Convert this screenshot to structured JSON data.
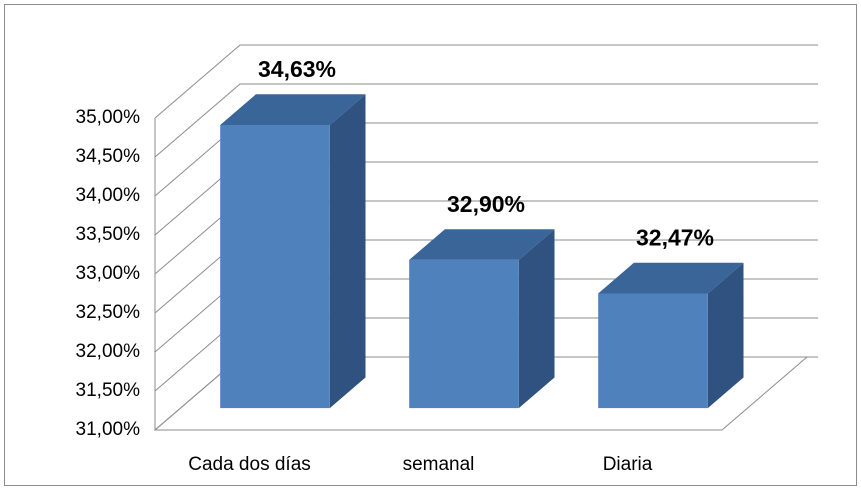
{
  "chart_data": {
    "type": "bar3d",
    "categories": [
      "Cada dos días",
      "semanal",
      "Diaria"
    ],
    "values": [
      34.63,
      32.9,
      32.47
    ],
    "value_labels": [
      "34,63%",
      "32,90%",
      "32,47%"
    ],
    "color": "#4f81bd",
    "ylim": [
      31,
      35
    ],
    "yticks": [
      {
        "value": 31,
        "label": "31,00%"
      },
      {
        "value": 31.5,
        "label": "31,50%"
      },
      {
        "value": 32,
        "label": "32,00%"
      },
      {
        "value": 32.5,
        "label": "32,50%"
      },
      {
        "value": 33,
        "label": "33,00%"
      },
      {
        "value": 33.5,
        "label": "33,50%"
      },
      {
        "value": 34,
        "label": "34,00%"
      },
      {
        "value": 34.5,
        "label": "34,50%"
      },
      {
        "value": 35,
        "label": "35,00%"
      }
    ],
    "grid": true
  }
}
